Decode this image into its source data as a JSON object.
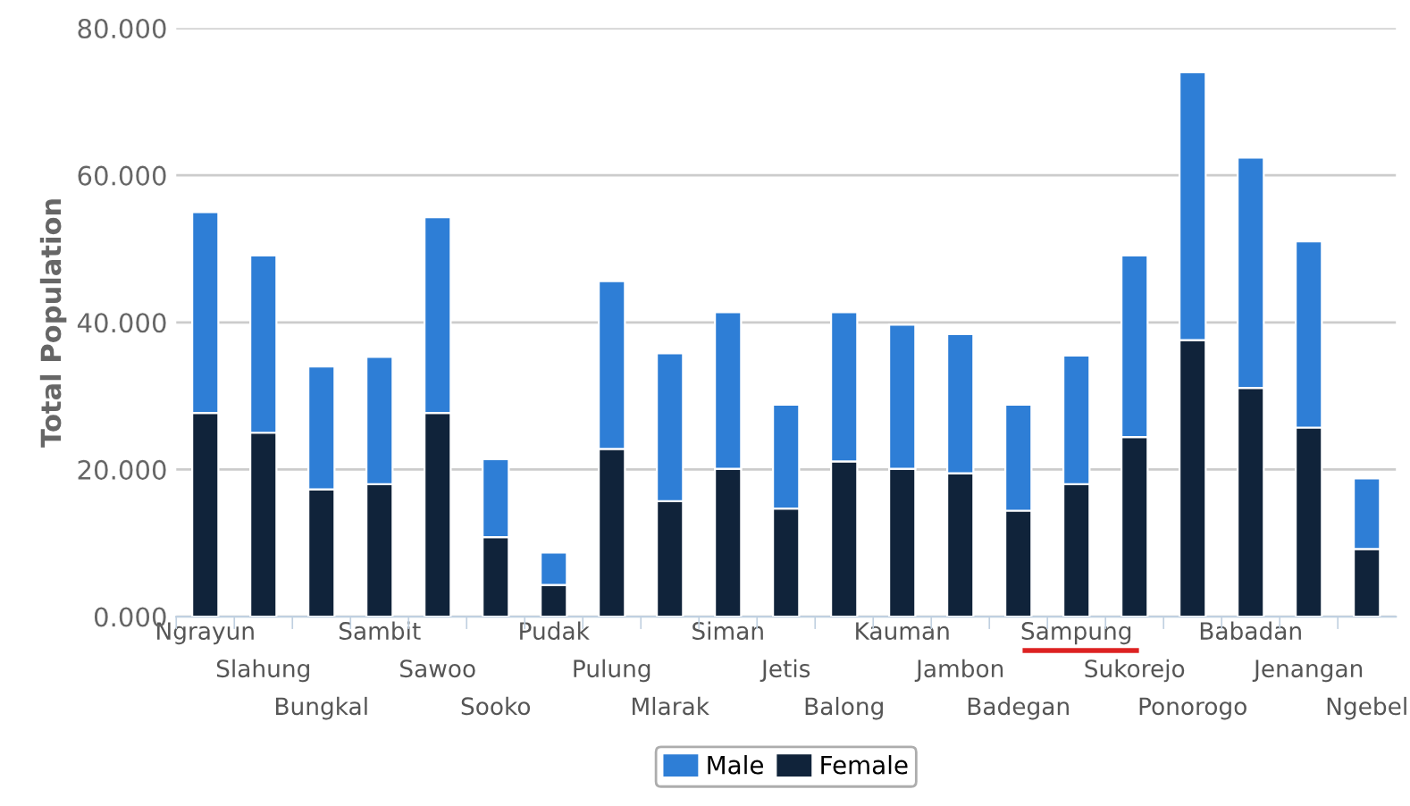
{
  "chart_data": {
    "type": "bar",
    "stacked": true,
    "ylabel": "Total Population",
    "categories": [
      "Ngrayun",
      "Slahung",
      "Bungkal",
      "Sambit",
      "Sawoo",
      "Sooko",
      "Pudak",
      "Pulung",
      "Mlarak",
      "Siman",
      "Jetis",
      "Balong",
      "Kauman",
      "Jambon",
      "Badegan",
      "Sampung",
      "Sukorejo",
      "Ponorogo",
      "Babadan",
      "Jenangan",
      "Ngebel"
    ],
    "series": [
      {
        "name": "Female",
        "color": "#10233a",
        "values": [
          27.7,
          25.0,
          17.3,
          18.0,
          27.7,
          10.8,
          4.3,
          22.8,
          15.7,
          20.1,
          14.7,
          21.1,
          20.1,
          19.5,
          14.4,
          18.0,
          24.4,
          37.6,
          31.1,
          25.7,
          9.2
        ]
      },
      {
        "name": "Male",
        "color": "#2e7ed6",
        "values": [
          27.3,
          24.1,
          16.7,
          17.3,
          26.6,
          10.6,
          4.4,
          22.8,
          20.1,
          21.3,
          14.1,
          20.3,
          19.6,
          18.9,
          14.4,
          17.5,
          24.7,
          36.4,
          31.3,
          25.3,
          9.6
        ]
      }
    ],
    "ylim": [
      0,
      80
    ],
    "yticks": [
      {
        "value": 0,
        "label": "0.000"
      },
      {
        "value": 20,
        "label": "20.000"
      },
      {
        "value": 40,
        "label": "40.000"
      },
      {
        "value": 60,
        "label": "60.000"
      },
      {
        "value": 80,
        "label": "80.000"
      }
    ],
    "grid": "y",
    "legend": "bottom"
  }
}
